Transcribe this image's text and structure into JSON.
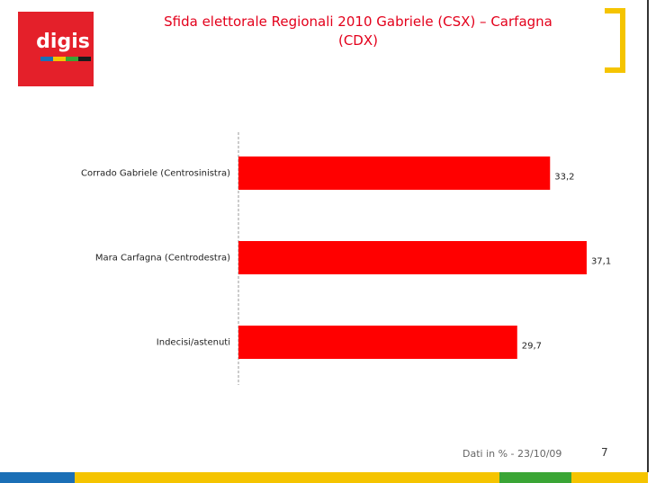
{
  "logo": "digis",
  "title": "Sfida elettorale Regionali 2010 Gabriele (CSX) – Carfagna (CDX)",
  "footer": "Dati in % - 23/10/09",
  "page_number": "7",
  "chart_data": {
    "type": "bar",
    "orientation": "horizontal",
    "categories": [
      "Corrado Gabriele (Centrosinistra)",
      "Mara Carfagna (Centrodestra)",
      "Indecisi/astenuti"
    ],
    "values": [
      33.2,
      37.1,
      29.7
    ],
    "value_labels": [
      "33,2",
      "37,1",
      "29,7"
    ],
    "color": "#ff0000"
  }
}
